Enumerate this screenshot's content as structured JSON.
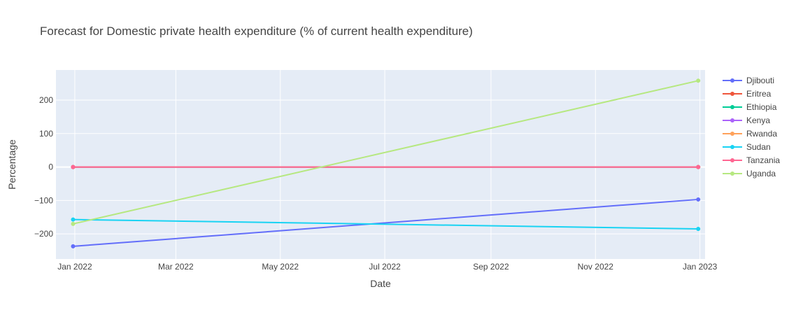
{
  "chart_data": {
    "type": "line",
    "title": "Forecast for Domestic private health expenditure (% of current health expenditure)",
    "xlabel": "Date",
    "ylabel": "Percentage",
    "x": [
      "2021-12-31",
      "2022-12-31"
    ],
    "x_ticks": [
      {
        "date": "2022-01-01",
        "label": "Jan 2022"
      },
      {
        "date": "2022-03-01",
        "label": "Mar 2022"
      },
      {
        "date": "2022-05-01",
        "label": "May 2022"
      },
      {
        "date": "2022-07-01",
        "label": "Jul 2022"
      },
      {
        "date": "2022-09-01",
        "label": "Sep 2022"
      },
      {
        "date": "2022-11-01",
        "label": "Nov 2022"
      },
      {
        "date": "2023-01-01",
        "label": "Jan 2023"
      }
    ],
    "xlim": [
      "2021-12-21",
      "2023-01-04"
    ],
    "ylim": [
      -275,
      290
    ],
    "y_ticks": [
      {
        "value": 200,
        "label": "200"
      },
      {
        "value": 100,
        "label": "100"
      },
      {
        "value": 0,
        "label": "0"
      },
      {
        "value": -100,
        "label": "−100"
      },
      {
        "value": -200,
        "label": "−200"
      }
    ],
    "grid": true,
    "legend_position": "right",
    "series": [
      {
        "name": "Djibouti",
        "color": "#636efa",
        "values": [
          -237,
          -97
        ]
      },
      {
        "name": "Eritrea",
        "color": "#ef553b",
        "values": [
          0,
          0
        ]
      },
      {
        "name": "Ethiopia",
        "color": "#00cc96",
        "values": [
          0,
          0
        ]
      },
      {
        "name": "Kenya",
        "color": "#ab63fa",
        "values": [
          0,
          0
        ]
      },
      {
        "name": "Rwanda",
        "color": "#ffa15a",
        "values": [
          0,
          0
        ]
      },
      {
        "name": "Sudan",
        "color": "#19d3f3",
        "values": [
          -157,
          -185
        ]
      },
      {
        "name": "Tanzania",
        "color": "#ff6692",
        "values": [
          0,
          0
        ]
      },
      {
        "name": "Uganda",
        "color": "#b6e880",
        "values": [
          -170,
          258
        ]
      }
    ],
    "colors": {
      "plot_background": "#e5ecf6",
      "grid": "#ffffff"
    }
  }
}
